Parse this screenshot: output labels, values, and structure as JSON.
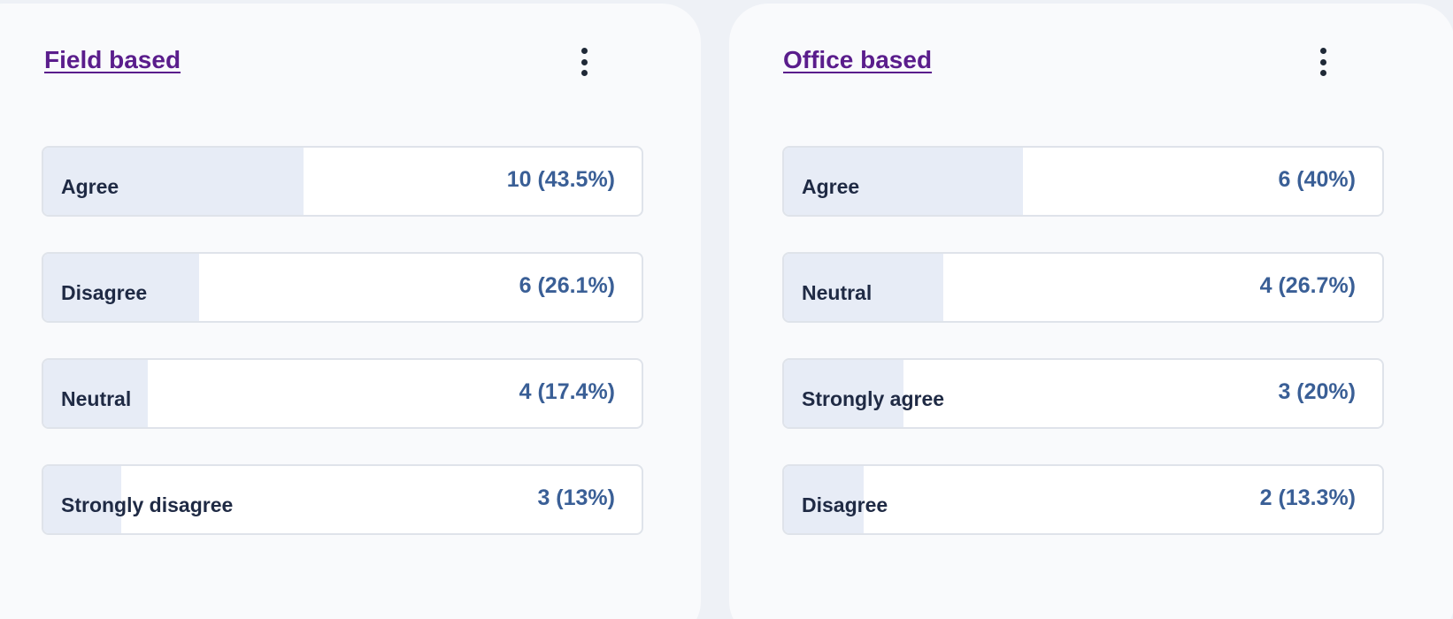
{
  "panels": [
    {
      "title": "Field based",
      "menu_icon": "more-vertical-icon",
      "items": [
        {
          "label": "Agree",
          "value": "10 (43.5%)",
          "fraction": 0.435
        },
        {
          "label": "Disagree",
          "value": "6 (26.1%)",
          "fraction": 0.261
        },
        {
          "label": "Neutral",
          "value": "4 (17.4%)",
          "fraction": 0.174
        },
        {
          "label": "Strongly disagree",
          "value": "3 (13%)",
          "fraction": 0.13
        }
      ]
    },
    {
      "title": "Office based",
      "menu_icon": "more-vertical-icon",
      "items": [
        {
          "label": "Agree",
          "value": "6 (40%)",
          "fraction": 0.4
        },
        {
          "label": "Neutral",
          "value": "4 (26.7%)",
          "fraction": 0.267
        },
        {
          "label": "Strongly agree",
          "value": "3 (20%)",
          "fraction": 0.2
        },
        {
          "label": "Disagree",
          "value": "2 (13.3%)",
          "fraction": 0.133
        }
      ]
    }
  ],
  "colors": {
    "title": "#5a1d8c",
    "bar_fill": "#e7ecf6",
    "value_text": "#3a5f96",
    "label_text": "#1f2a44"
  }
}
